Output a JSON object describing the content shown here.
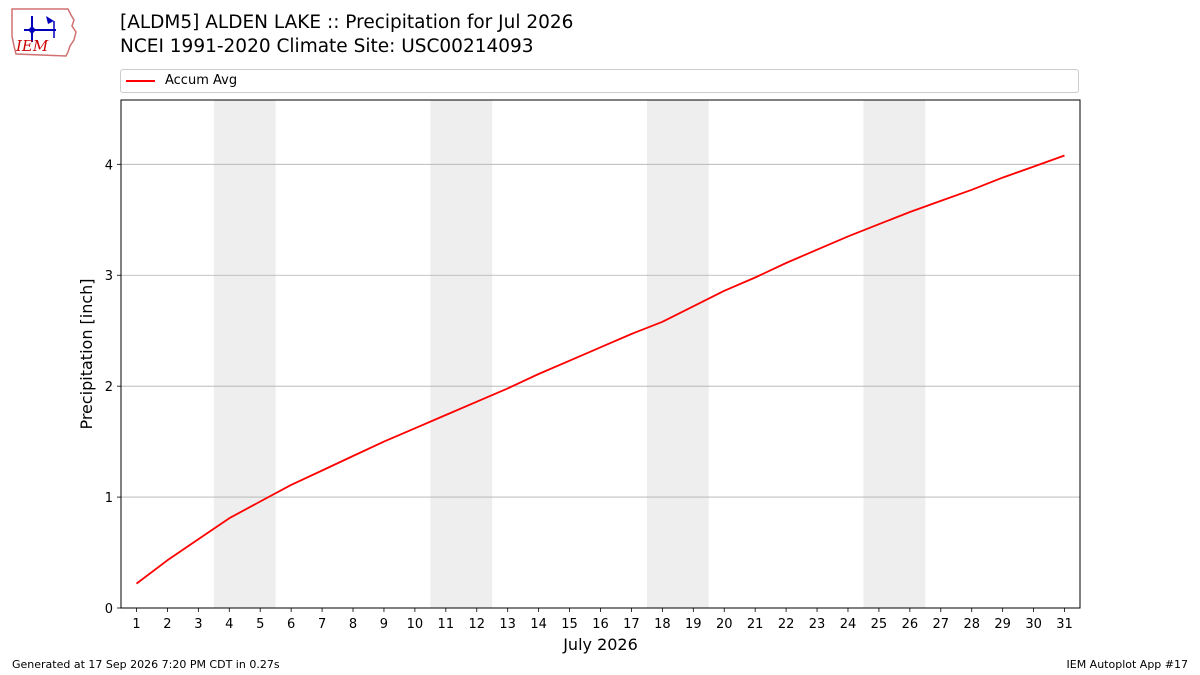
{
  "header": {
    "title_line1": "[ALDM5] ALDEN LAKE :: Precipitation for Jul 2026",
    "title_line2": "NCEI 1991-2020 Climate Site: USC00214093",
    "logo_text": "IEM"
  },
  "legend": {
    "label": "Accum Avg",
    "color": "#ff0000"
  },
  "footer": {
    "left": "Generated at 17 Sep 2026 7:20 PM CDT in 0.27s",
    "right": "IEM Autoplot App #17"
  },
  "chart_data": {
    "type": "line",
    "title": "[ALDM5] ALDEN LAKE :: Precipitation for Jul 2026",
    "subtitle": "NCEI 1991-2020 Climate Site: USC00214093",
    "xlabel": "July 2026",
    "ylabel": "Precipitation [inch]",
    "x": [
      1,
      2,
      3,
      4,
      5,
      6,
      7,
      8,
      9,
      10,
      11,
      12,
      13,
      14,
      15,
      16,
      17,
      18,
      19,
      20,
      21,
      22,
      23,
      24,
      25,
      26,
      27,
      28,
      29,
      30,
      31
    ],
    "xlim": [
      0.5,
      31.5
    ],
    "ylim": [
      0,
      4.58
    ],
    "yticks": [
      0,
      1,
      2,
      3,
      4
    ],
    "grid": "y",
    "legend_position": "top",
    "weekend_bands": [
      [
        3.5,
        5.5
      ],
      [
        10.5,
        12.5
      ],
      [
        17.5,
        19.5
      ],
      [
        24.5,
        26.5
      ]
    ],
    "weekend_band_color": "#eeeeee",
    "series": [
      {
        "name": "Accum Avg",
        "color": "#ff0000",
        "values": [
          0.22,
          0.43,
          0.62,
          0.81,
          0.96,
          1.11,
          1.24,
          1.37,
          1.5,
          1.62,
          1.74,
          1.86,
          1.98,
          2.11,
          2.23,
          2.35,
          2.47,
          2.58,
          2.72,
          2.86,
          2.98,
          3.11,
          3.23,
          3.35,
          3.46,
          3.57,
          3.67,
          3.77,
          3.88,
          3.98,
          4.08
        ]
      }
    ]
  }
}
